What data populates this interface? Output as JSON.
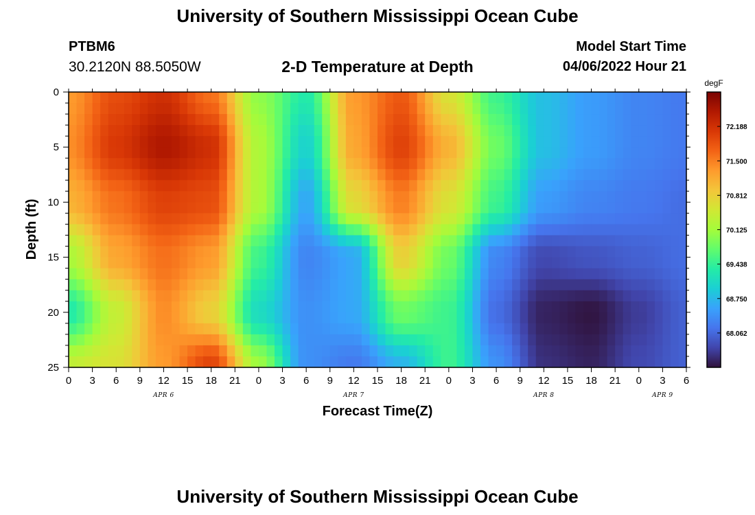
{
  "header": {
    "title": "University of Southern Mississippi Ocean Cube",
    "station_id": "PTBM6",
    "station_coords": "30.2120N  88.5050W",
    "plot_title": "2-D Temperature at Depth",
    "model_start_label": "Model Start Time",
    "model_start_value": "04/06/2022 Hour 21"
  },
  "footer": {
    "title": "University of Southern Mississippi Ocean Cube"
  },
  "chart_data": {
    "type": "heatmap",
    "title": "2-D Temperature at Depth",
    "xlabel": "Forecast Time(Z)",
    "ylabel": "Depth (ft)",
    "x_tick_labels": [
      "0",
      "3",
      "6",
      "9",
      "12",
      "15",
      "18",
      "21",
      "0",
      "3",
      "6",
      "9",
      "12",
      "15",
      "18",
      "21",
      "0",
      "3",
      "6",
      "9",
      "12",
      "15",
      "18",
      "21",
      "0",
      "3",
      "6"
    ],
    "x_tick_hours": [
      0,
      3,
      6,
      9,
      12,
      15,
      18,
      21,
      24,
      27,
      30,
      33,
      36,
      39,
      42,
      45,
      48,
      51,
      54,
      57,
      60,
      63,
      66,
      69,
      72,
      75,
      78
    ],
    "date_labels": [
      {
        "label": "APR 6",
        "hour": 12
      },
      {
        "label": "APR 7",
        "hour": 36
      },
      {
        "label": "APR 8",
        "hour": 60
      },
      {
        "label": "APR 9",
        "hour": 75
      }
    ],
    "ylim": [
      25,
      0
    ],
    "y_ticks": [
      0,
      5,
      10,
      15,
      20,
      25
    ],
    "xlim": [
      0,
      78
    ],
    "colorbar": {
      "unit": "degF",
      "min": 67.375,
      "max": 72.875,
      "tick_labels": [
        "72.188",
        "71.500",
        "70.812",
        "70.125",
        "69.438",
        "68.750",
        "68.062"
      ],
      "tick_values": [
        72.188,
        71.5,
        70.812,
        70.125,
        69.438,
        68.75,
        68.062
      ],
      "colors": [
        "#30123b",
        "#4145ab",
        "#4675ed",
        "#39a2fc",
        "#1bcfd4",
        "#24eca6",
        "#61fc6c",
        "#a4fc3b",
        "#d1e834",
        "#f3c63a",
        "#fe9b2d",
        "#f36315",
        "#d93806",
        "#b11901",
        "#7a0403"
      ]
    },
    "grid_hours": [
      0,
      6,
      12,
      18,
      24,
      30,
      36,
      42,
      48,
      54,
      60,
      66,
      72,
      78
    ],
    "grid_depths": [
      0,
      5,
      10,
      15,
      20,
      25
    ],
    "grid_temps": [
      [
        71.3,
        71.9,
        72.2,
        71.6,
        70.0,
        69.3,
        71.3,
        71.8,
        70.6,
        69.5,
        68.8,
        68.5,
        68.3,
        68.2
      ],
      [
        71.4,
        72.1,
        72.5,
        72.2,
        70.2,
        69.0,
        71.2,
        72.0,
        71.1,
        69.8,
        68.8,
        68.5,
        68.3,
        68.2
      ],
      [
        71.1,
        71.6,
        72.0,
        71.9,
        70.2,
        68.6,
        70.7,
        71.5,
        70.6,
        69.5,
        68.5,
        68.3,
        68.2,
        68.1
      ],
      [
        70.2,
        71.2,
        71.6,
        71.3,
        69.5,
        68.3,
        68.6,
        70.8,
        69.8,
        68.3,
        67.8,
        67.9,
        68.0,
        68.1
      ],
      [
        69.3,
        70.4,
        71.4,
        70.8,
        69.1,
        68.4,
        68.6,
        69.8,
        69.5,
        68.1,
        67.5,
        67.4,
        67.7,
        68.0
      ],
      [
        70.4,
        70.6,
        71.3,
        72.0,
        70.1,
        68.4,
        68.2,
        68.7,
        69.5,
        68.4,
        67.6,
        67.5,
        67.8,
        68.0
      ]
    ]
  }
}
